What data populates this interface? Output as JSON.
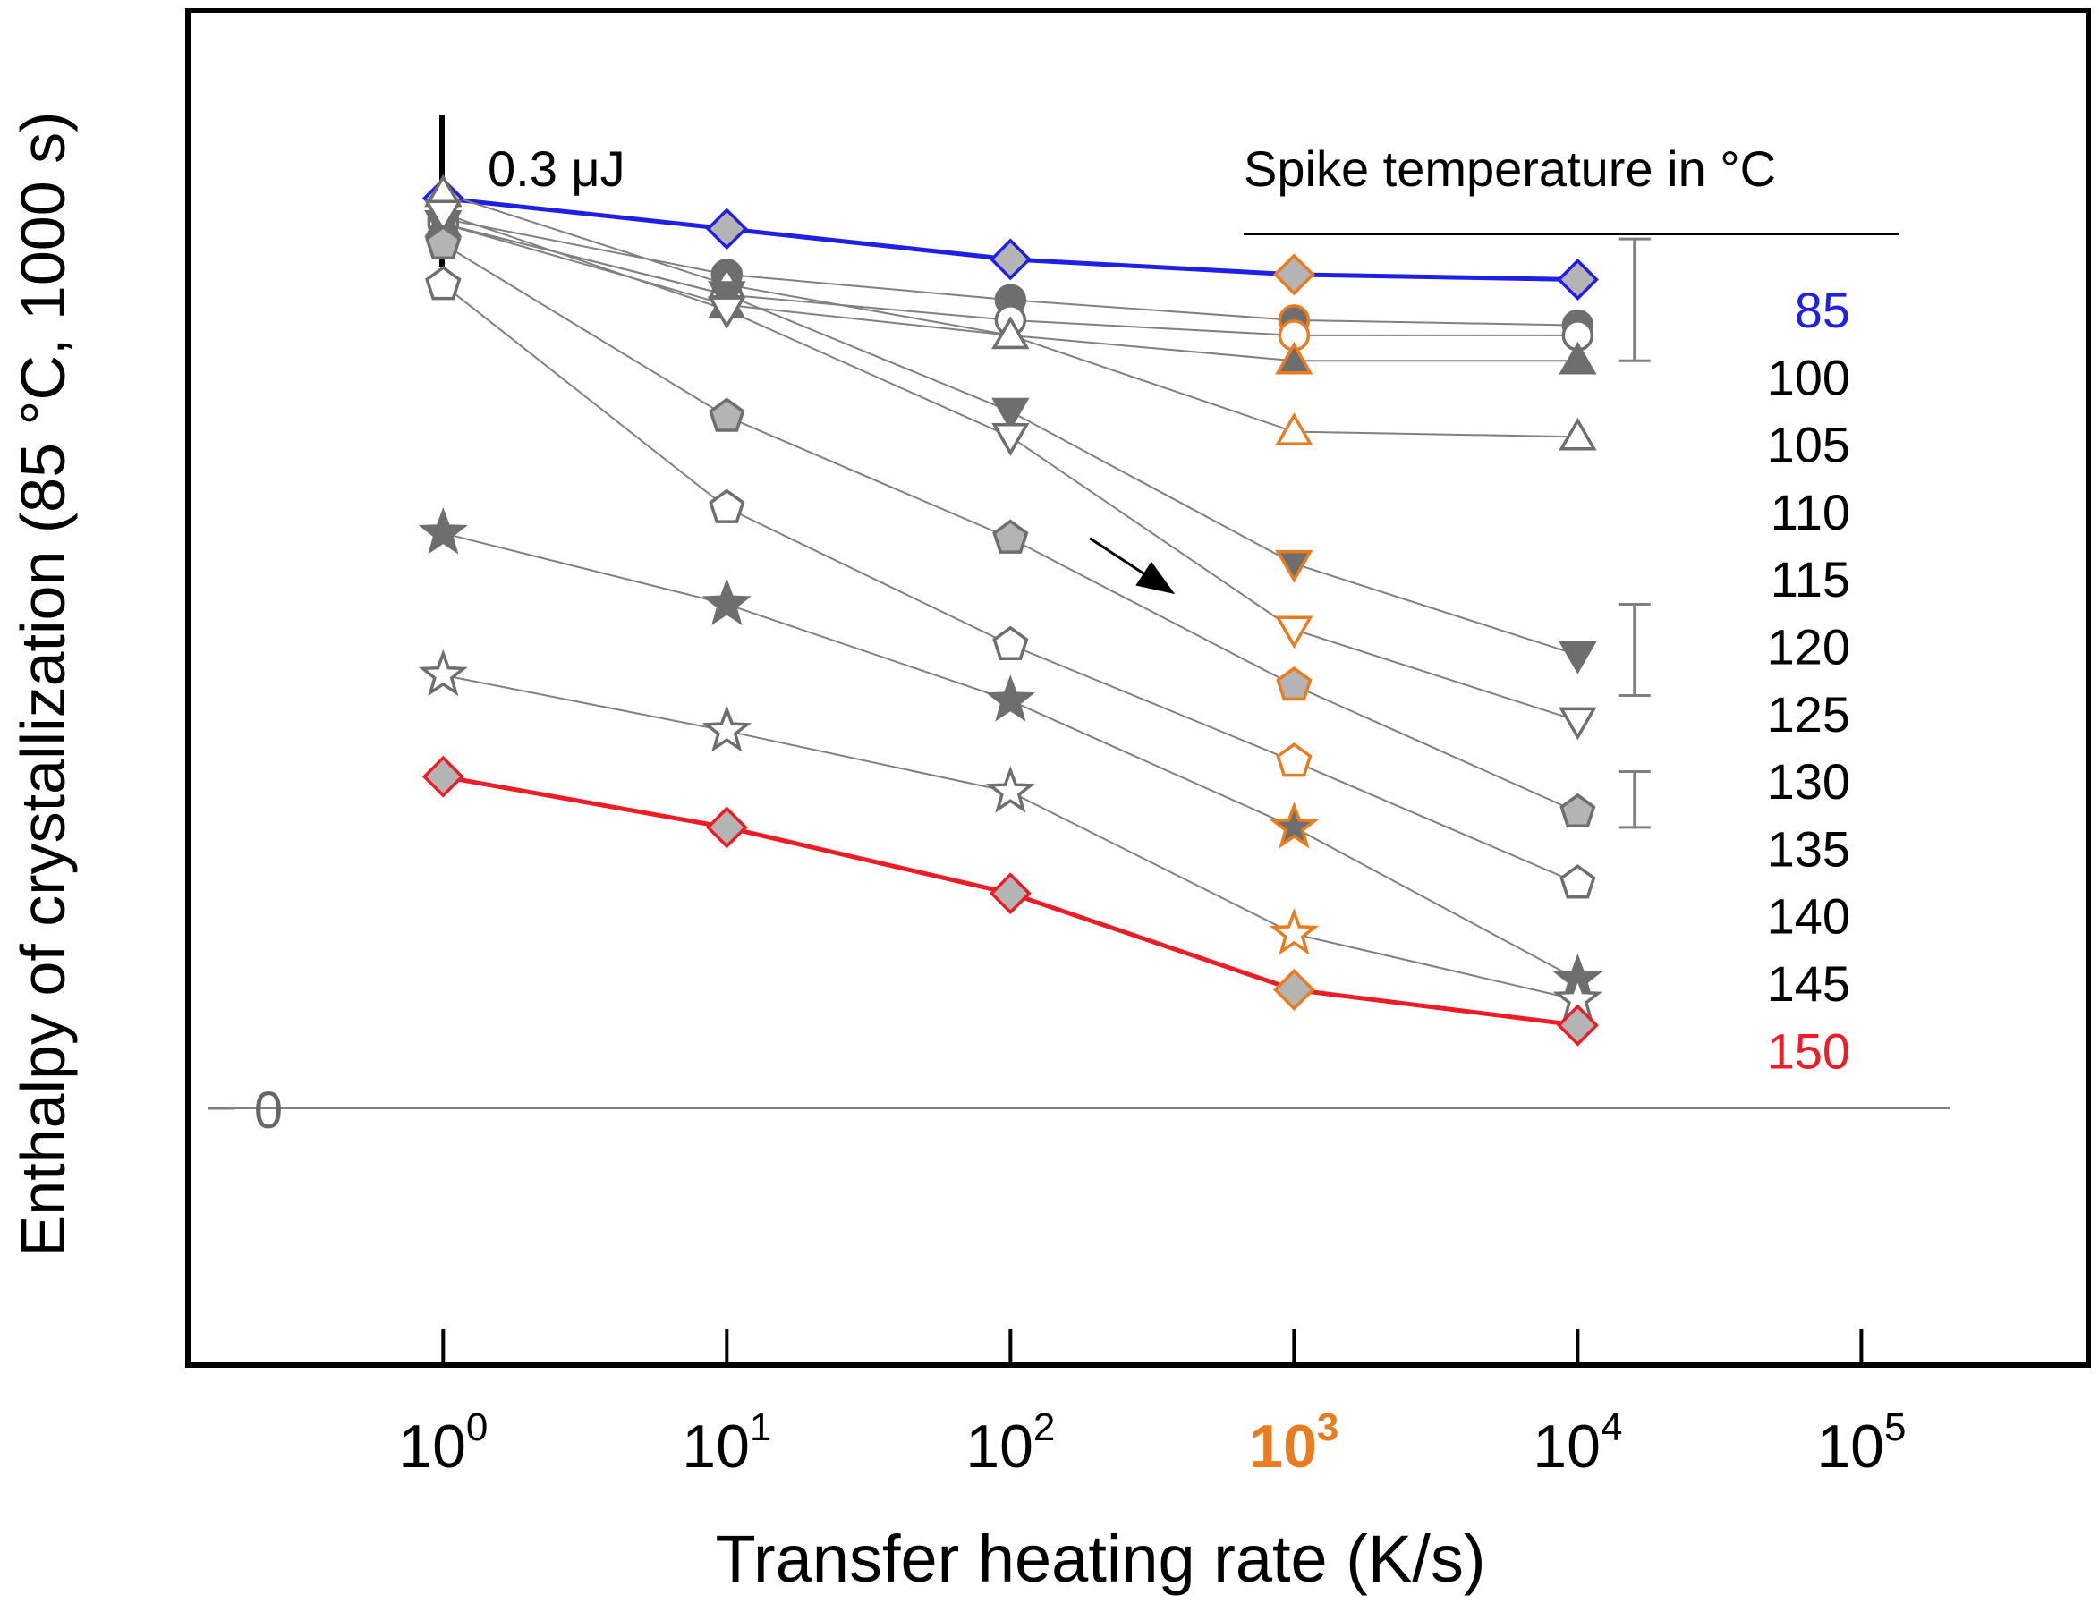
{
  "chart_data": {
    "type": "line",
    "ylabel": "Enthalpy of crystallization (85 °C, 1000 s)",
    "xlabel": "Transfer heating rate (K/s)",
    "x_scale": "log10",
    "x": [
      0,
      1,
      2,
      3,
      4
    ],
    "xlim": [
      -0.9,
      5.8
    ],
    "ylim": [
      -0.51,
      2.16
    ],
    "x_ticks": [
      {
        "base": "10",
        "exp": "0",
        "value": 0,
        "highlight": false
      },
      {
        "base": "10",
        "exp": "1",
        "value": 1,
        "highlight": false
      },
      {
        "base": "10",
        "exp": "2",
        "value": 2,
        "highlight": false
      },
      {
        "base": "10",
        "exp": "3",
        "value": 3,
        "highlight": true
      },
      {
        "base": "10",
        "exp": "4",
        "value": 4,
        "highlight": false
      },
      {
        "base": "10",
        "exp": "5",
        "value": 5,
        "highlight": false
      }
    ],
    "zero_label": "0",
    "scale_bar": {
      "label": "0.3 μJ",
      "length": 0.3
    },
    "legend_title": "Spike temperature in °C",
    "highlight_x": 3,
    "colors": {
      "blue": "#1f1fe6",
      "red": "#ee1c24",
      "orange": "#e97c1f",
      "gray": "#808080",
      "dark": "#6e6e6e",
      "light": "#b4b4b4"
    },
    "series": [
      {
        "name": "85",
        "marker": "diamond",
        "fill": "light",
        "line": "blue",
        "values": [
          1.79,
          1.73,
          1.67,
          1.64,
          1.63
        ]
      },
      {
        "name": "100",
        "marker": "circle",
        "fill": "dark",
        "line": "gray",
        "values": [
          1.75,
          1.64,
          1.59,
          1.55,
          1.54
        ]
      },
      {
        "name": "105",
        "marker": "circle",
        "fill": "none",
        "line": "gray",
        "values": [
          1.74,
          1.6,
          1.55,
          1.52,
          1.52
        ]
      },
      {
        "name": "110",
        "marker": "triangle-up",
        "fill": "dark",
        "line": "gray",
        "values": [
          1.74,
          1.58,
          1.52,
          1.47,
          1.47
        ]
      },
      {
        "name": "115",
        "marker": "triangle-up",
        "fill": "none",
        "line": "gray",
        "values": [
          1.8,
          1.62,
          1.52,
          1.33,
          1.32
        ]
      },
      {
        "name": "120",
        "marker": "triangle-down",
        "fill": "dark",
        "line": "gray",
        "values": [
          1.74,
          1.6,
          1.37,
          1.07,
          0.89
        ]
      },
      {
        "name": "125",
        "marker": "triangle-down",
        "fill": "none",
        "line": "gray",
        "values": [
          1.76,
          1.57,
          1.32,
          0.94,
          0.76
        ]
      },
      {
        "name": "130",
        "marker": "pentagon",
        "fill": "light",
        "line": "gray",
        "values": [
          1.7,
          1.36,
          1.12,
          0.83,
          0.58
        ]
      },
      {
        "name": "135",
        "marker": "pentagon",
        "fill": "none",
        "line": "gray",
        "values": [
          1.62,
          1.18,
          0.91,
          0.68,
          0.44
        ]
      },
      {
        "name": "140",
        "marker": "star",
        "fill": "dark",
        "line": "gray",
        "values": [
          1.13,
          0.99,
          0.8,
          0.55,
          0.25
        ]
      },
      {
        "name": "145",
        "marker": "star",
        "fill": "none",
        "line": "gray",
        "values": [
          0.85,
          0.74,
          0.62,
          0.34,
          0.21
        ]
      },
      {
        "name": "150",
        "marker": "diamond",
        "fill": "light",
        "line": "red",
        "values": [
          0.65,
          0.55,
          0.42,
          0.23,
          0.16
        ]
      }
    ],
    "error_bars": [
      {
        "x": 4.2,
        "low": 1.47,
        "high": 1.71
      },
      {
        "x": 4.2,
        "low": 0.81,
        "high": 0.99
      },
      {
        "x": 4.2,
        "low": 0.55,
        "high": 0.66
      }
    ],
    "arrow": {
      "from": [
        2.28,
        1.12
      ],
      "to": [
        2.58,
        1.01
      ]
    }
  }
}
